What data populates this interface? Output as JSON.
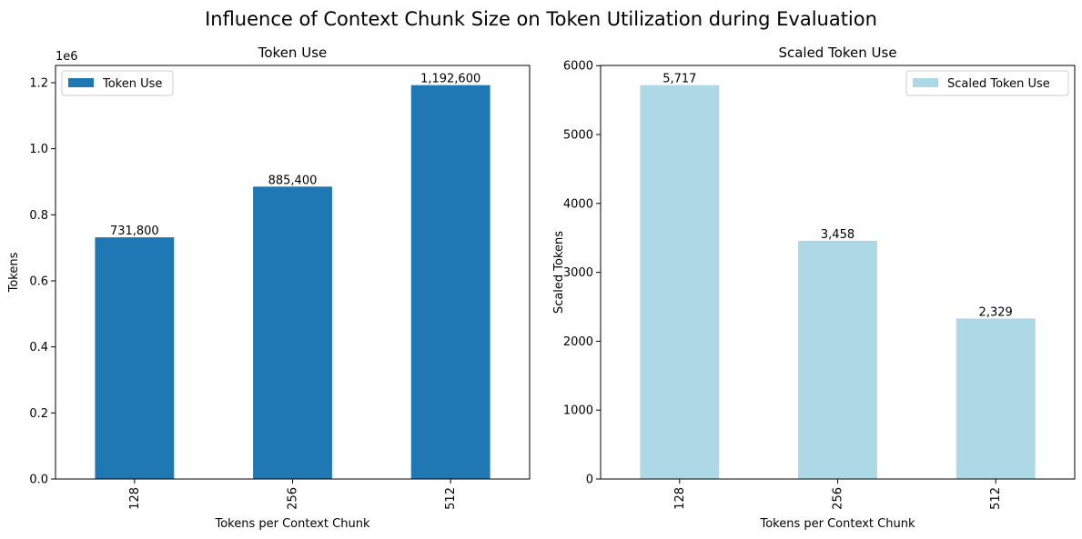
{
  "figure": {
    "title": "Influence of Context Chunk Size on Token Utilization during Evaluation"
  },
  "chart_data": [
    {
      "type": "bar",
      "title": "Token Use",
      "xlabel": "Tokens per Context Chunk",
      "ylabel": "Tokens",
      "offset_text": "1e6",
      "categories": [
        "128",
        "256",
        "512"
      ],
      "series": [
        {
          "name": "Token Use",
          "values": [
            731800,
            885400,
            1192600
          ],
          "color": "#1f77b4"
        }
      ],
      "data_labels": [
        "731,800",
        "885,400",
        "1,192,600"
      ],
      "ylim": [
        0,
        1252230
      ],
      "yticks": [
        0,
        200000,
        400000,
        600000,
        800000,
        1000000,
        1200000
      ],
      "ytick_labels": [
        "0.0",
        "0.2",
        "0.4",
        "0.6",
        "0.8",
        "1.0",
        "1.2"
      ],
      "legend": "top-left",
      "grid": false
    },
    {
      "type": "bar",
      "title": "Scaled Token Use",
      "xlabel": "Tokens per Context Chunk",
      "ylabel": "Scaled Tokens",
      "offset_text": "",
      "categories": [
        "128",
        "256",
        "512"
      ],
      "series": [
        {
          "name": "Scaled Token Use",
          "values": [
            5717,
            3458,
            2329
          ],
          "color": "#add8e6"
        }
      ],
      "data_labels": [
        "5,717",
        "3,458",
        "2,329"
      ],
      "ylim": [
        0,
        6003
      ],
      "yticks": [
        0,
        1000,
        2000,
        3000,
        4000,
        5000,
        6000
      ],
      "ytick_labels": [
        "0",
        "1000",
        "2000",
        "3000",
        "4000",
        "5000",
        "6000"
      ],
      "legend": "top-right",
      "grid": false
    }
  ]
}
